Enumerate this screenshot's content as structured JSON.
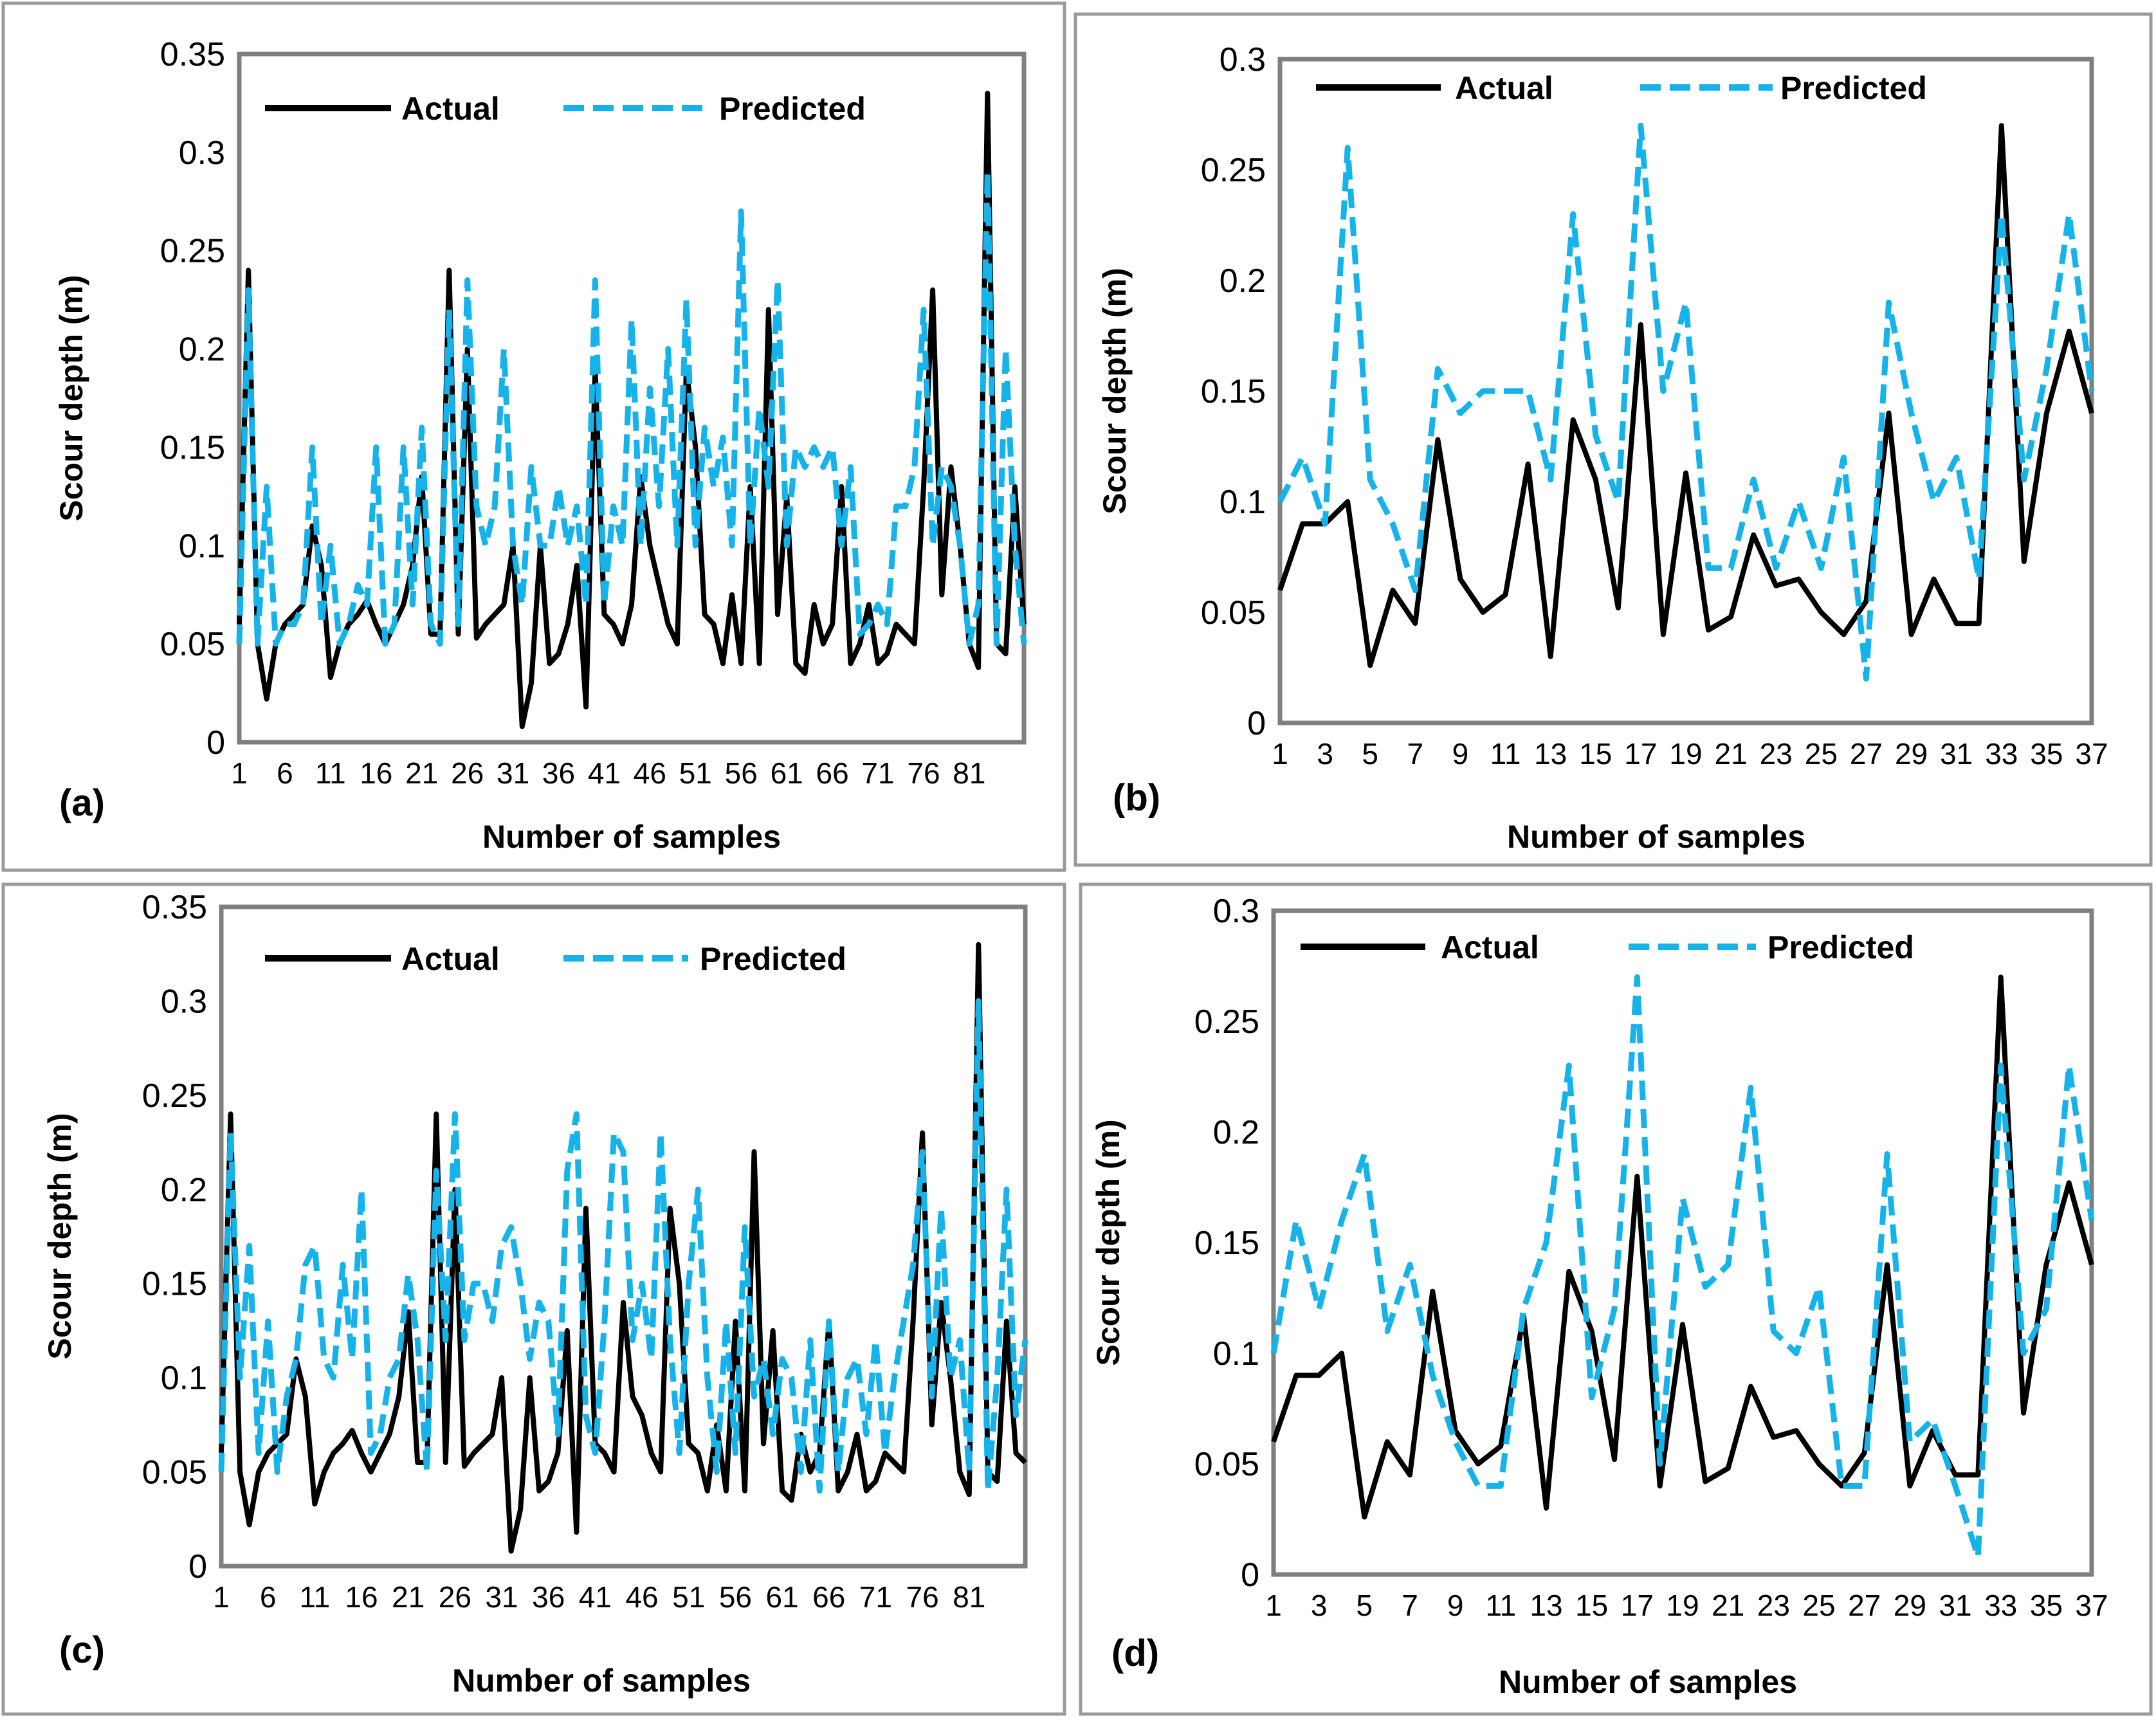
{
  "colors": {
    "actual": "#000000",
    "predicted": "#15b3ea",
    "frame": "#7f7f7f"
  },
  "chart_data": [
    {
      "panel": "(a)",
      "type": "line",
      "xlabel": "Number of samples",
      "ylabel": "Scour depth (m)",
      "ylim": [
        0,
        0.35
      ],
      "yticks": [
        "0",
        "0.05",
        "0.1",
        "0.15",
        "0.2",
        "0.25",
        "0.3",
        "0.35"
      ],
      "xtick_labels": [
        "1",
        "6",
        "11",
        "16",
        "21",
        "26",
        "31",
        "36",
        "41",
        "46",
        "51",
        "56",
        "61",
        "66",
        "71",
        "76",
        "81"
      ],
      "x_count": 87,
      "legend": {
        "placement": "top-left",
        "actual": "Actual",
        "predicted": "Predicted"
      },
      "series": [
        {
          "name": "Actual",
          "values": [
            0.06,
            0.24,
            0.05,
            0.022,
            0.05,
            0.06,
            0.065,
            0.07,
            0.11,
            0.09,
            0.033,
            0.05,
            0.06,
            0.065,
            0.072,
            0.06,
            0.05,
            0.06,
            0.07,
            0.09,
            0.135,
            0.055,
            0.055,
            0.24,
            0.055,
            0.2,
            0.053,
            0.06,
            0.065,
            0.07,
            0.1,
            0.008,
            0.03,
            0.1,
            0.04,
            0.045,
            0.06,
            0.09,
            0.018,
            0.19,
            0.065,
            0.06,
            0.05,
            0.07,
            0.135,
            0.1,
            0.08,
            0.06,
            0.05,
            0.19,
            0.15,
            0.065,
            0.06,
            0.04,
            0.075,
            0.04,
            0.13,
            0.04,
            0.22,
            0.065,
            0.125,
            0.04,
            0.035,
            0.07,
            0.05,
            0.06,
            0.13,
            0.04,
            0.05,
            0.07,
            0.04,
            0.045,
            0.06,
            0.055,
            0.05,
            0.13,
            0.23,
            0.075,
            0.14,
            0.1,
            0.05,
            0.038,
            0.33,
            0.05,
            0.045,
            0.13,
            0.06
          ]
        },
        {
          "name": "Predicted",
          "values": [
            0.05,
            0.23,
            0.05,
            0.13,
            0.05,
            0.06,
            0.06,
            0.07,
            0.15,
            0.06,
            0.1,
            0.05,
            0.06,
            0.08,
            0.07,
            0.15,
            0.05,
            0.06,
            0.15,
            0.07,
            0.16,
            0.06,
            0.05,
            0.22,
            0.06,
            0.235,
            0.12,
            0.1,
            0.12,
            0.2,
            0.1,
            0.07,
            0.14,
            0.1,
            0.1,
            0.13,
            0.1,
            0.12,
            0.07,
            0.235,
            0.07,
            0.12,
            0.1,
            0.215,
            0.1,
            0.18,
            0.12,
            0.2,
            0.1,
            0.225,
            0.1,
            0.16,
            0.13,
            0.155,
            0.1,
            0.27,
            0.1,
            0.17,
            0.13,
            0.235,
            0.1,
            0.15,
            0.14,
            0.15,
            0.14,
            0.15,
            0.1,
            0.14,
            0.055,
            0.06,
            0.07,
            0.06,
            0.12,
            0.12,
            0.14,
            0.22,
            0.1,
            0.14,
            0.13,
            0.1,
            0.05,
            0.07,
            0.29,
            0.05,
            0.2,
            0.1,
            0.05
          ]
        }
      ]
    },
    {
      "panel": "(b)",
      "type": "line",
      "xlabel": "Number of samples",
      "ylabel": "Scour depth (m)",
      "ylim": [
        0,
        0.3
      ],
      "yticks": [
        "0",
        "0.05",
        "0.1",
        "0.15",
        "0.2",
        "0.25",
        "0.3"
      ],
      "xtick_labels": [
        "1",
        "3",
        "5",
        "7",
        "9",
        "11",
        "13",
        "15",
        "17",
        "19",
        "21",
        "23",
        "25",
        "27",
        "29",
        "31",
        "33",
        "35",
        "37"
      ],
      "x_count": 37,
      "legend": {
        "placement": "top",
        "actual": "Actual",
        "predicted": "Predicted"
      },
      "series": [
        {
          "name": "Actual",
          "values": [
            0.06,
            0.09,
            0.09,
            0.1,
            0.026,
            0.06,
            0.045,
            0.128,
            0.065,
            0.05,
            0.058,
            0.117,
            0.03,
            0.137,
            0.11,
            0.052,
            0.18,
            0.04,
            0.113,
            0.042,
            0.048,
            0.085,
            0.062,
            0.065,
            0.05,
            0.04,
            0.055,
            0.14,
            0.04,
            0.065,
            0.045,
            0.045,
            0.27,
            0.073,
            0.14,
            0.177,
            0.14
          ]
        },
        {
          "name": "Predicted",
          "values": [
            0.1,
            0.12,
            0.09,
            0.26,
            0.11,
            0.09,
            0.06,
            0.16,
            0.14,
            0.15,
            0.15,
            0.15,
            0.11,
            0.23,
            0.13,
            0.1,
            0.27,
            0.15,
            0.19,
            0.07,
            0.07,
            0.11,
            0.07,
            0.1,
            0.07,
            0.12,
            0.02,
            0.19,
            0.14,
            0.1,
            0.12,
            0.065,
            0.23,
            0.11,
            0.16,
            0.23,
            0.15
          ]
        }
      ]
    },
    {
      "panel": "(c)",
      "type": "line",
      "xlabel": "Number of samples",
      "ylabel": "Scour depth (m)",
      "ylim": [
        0,
        0.35
      ],
      "yticks": [
        "0",
        "0.05",
        "0.1",
        "0.15",
        "0.2",
        "0.25",
        "0.3",
        "0.35"
      ],
      "xtick_labels": [
        "1",
        "6",
        "11",
        "16",
        "21",
        "26",
        "31",
        "36",
        "41",
        "46",
        "51",
        "56",
        "61",
        "66",
        "71",
        "76",
        "81"
      ],
      "x_count": 87,
      "legend": {
        "placement": "top-left",
        "actual": "Actual",
        "predicted": "Predicted"
      },
      "series": [
        {
          "name": "Actual",
          "values": [
            0.06,
            0.24,
            0.05,
            0.022,
            0.05,
            0.06,
            0.065,
            0.07,
            0.11,
            0.09,
            0.033,
            0.05,
            0.06,
            0.065,
            0.072,
            0.06,
            0.05,
            0.06,
            0.07,
            0.09,
            0.135,
            0.055,
            0.055,
            0.24,
            0.055,
            0.2,
            0.053,
            0.06,
            0.065,
            0.07,
            0.1,
            0.008,
            0.03,
            0.1,
            0.04,
            0.045,
            0.06,
            0.125,
            0.018,
            0.19,
            0.065,
            0.06,
            0.05,
            0.14,
            0.09,
            0.08,
            0.06,
            0.05,
            0.19,
            0.15,
            0.065,
            0.06,
            0.04,
            0.075,
            0.04,
            0.13,
            0.04,
            0.22,
            0.065,
            0.125,
            0.04,
            0.035,
            0.07,
            0.05,
            0.06,
            0.13,
            0.04,
            0.05,
            0.07,
            0.04,
            0.045,
            0.06,
            0.055,
            0.05,
            0.13,
            0.23,
            0.075,
            0.14,
            0.1,
            0.05,
            0.038,
            0.33,
            0.05,
            0.045,
            0.13,
            0.06,
            0.055
          ]
        },
        {
          "name": "Predicted",
          "values": [
            0.05,
            0.23,
            0.1,
            0.17,
            0.06,
            0.13,
            0.05,
            0.09,
            0.11,
            0.16,
            0.17,
            0.11,
            0.1,
            0.16,
            0.11,
            0.2,
            0.06,
            0.07,
            0.1,
            0.11,
            0.155,
            0.12,
            0.05,
            0.21,
            0.12,
            0.24,
            0.12,
            0.15,
            0.15,
            0.13,
            0.17,
            0.18,
            0.15,
            0.11,
            0.14,
            0.13,
            0.07,
            0.21,
            0.24,
            0.08,
            0.06,
            0.13,
            0.23,
            0.22,
            0.12,
            0.15,
            0.11,
            0.23,
            0.12,
            0.06,
            0.15,
            0.2,
            0.1,
            0.05,
            0.13,
            0.06,
            0.18,
            0.09,
            0.11,
            0.07,
            0.11,
            0.1,
            0.05,
            0.12,
            0.04,
            0.13,
            0.05,
            0.1,
            0.11,
            0.07,
            0.12,
            0.06,
            0.1,
            0.13,
            0.16,
            0.22,
            0.09,
            0.19,
            0.1,
            0.12,
            0.05,
            0.3,
            0.04,
            0.1,
            0.2,
            0.08,
            0.12
          ]
        }
      ]
    },
    {
      "panel": "(d)",
      "type": "line",
      "xlabel": "Number of samples",
      "ylabel": "Scour depth (m)",
      "ylim": [
        0,
        0.3
      ],
      "yticks": [
        "0",
        "0.05",
        "0.1",
        "0.15",
        "0.2",
        "0.25",
        "0.3"
      ],
      "xtick_labels": [
        "1",
        "3",
        "5",
        "7",
        "9",
        "11",
        "13",
        "15",
        "17",
        "19",
        "21",
        "23",
        "25",
        "27",
        "29",
        "31",
        "33",
        "35",
        "37"
      ],
      "x_count": 37,
      "legend": {
        "placement": "top",
        "actual": "Actual",
        "predicted": "Predicted"
      },
      "series": [
        {
          "name": "Actual",
          "values": [
            0.06,
            0.09,
            0.09,
            0.1,
            0.026,
            0.06,
            0.045,
            0.128,
            0.065,
            0.05,
            0.058,
            0.117,
            0.03,
            0.137,
            0.11,
            0.052,
            0.18,
            0.04,
            0.113,
            0.042,
            0.048,
            0.085,
            0.062,
            0.065,
            0.05,
            0.04,
            0.055,
            0.14,
            0.04,
            0.065,
            0.045,
            0.045,
            0.27,
            0.073,
            0.14,
            0.177,
            0.14
          ]
        },
        {
          "name": "Predicted",
          "values": [
            0.1,
            0.16,
            0.12,
            0.16,
            0.19,
            0.11,
            0.14,
            0.09,
            0.06,
            0.04,
            0.04,
            0.12,
            0.15,
            0.23,
            0.08,
            0.12,
            0.27,
            0.05,
            0.17,
            0.13,
            0.14,
            0.22,
            0.11,
            0.1,
            0.13,
            0.04,
            0.04,
            0.19,
            0.06,
            0.07,
            0.04,
            0.008,
            0.23,
            0.1,
            0.12,
            0.23,
            0.16
          ]
        }
      ]
    }
  ]
}
